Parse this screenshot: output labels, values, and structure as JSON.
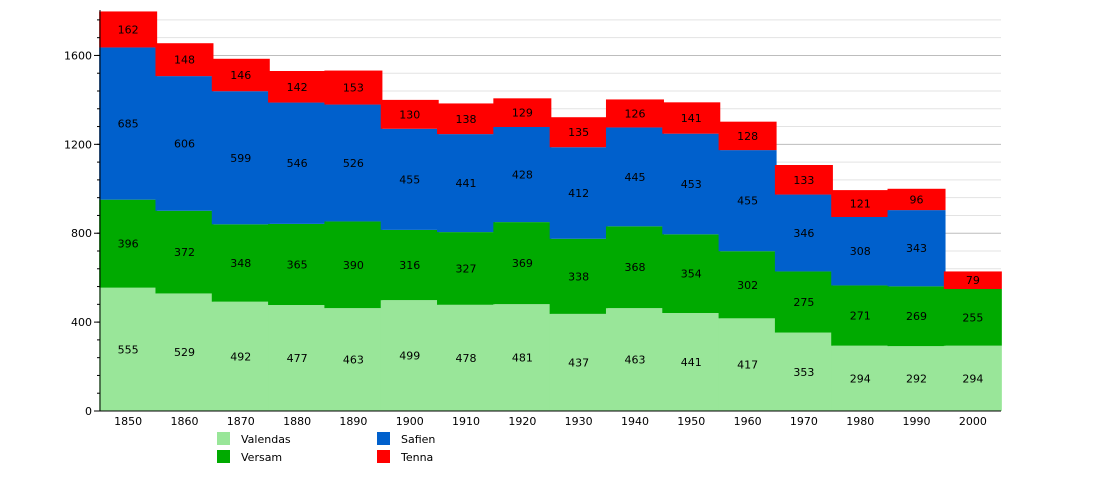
{
  "chart_data": {
    "type": "bar",
    "stacked": true,
    "categories": [
      "1850",
      "1860",
      "1870",
      "1880",
      "1890",
      "1900",
      "1910",
      "1920",
      "1930",
      "1940",
      "1950",
      "1960",
      "1970",
      "1980",
      "1990",
      "2000"
    ],
    "series": [
      {
        "name": "Valendas",
        "color": "#99e699",
        "values": [
          555,
          529,
          492,
          477,
          463,
          499,
          478,
          481,
          437,
          463,
          441,
          417,
          353,
          294,
          292,
          294
        ]
      },
      {
        "name": "Versam",
        "color": "#00aa00",
        "values": [
          396,
          372,
          348,
          365,
          390,
          316,
          327,
          369,
          338,
          368,
          354,
          302,
          275,
          271,
          269,
          255
        ]
      },
      {
        "name": "Safien",
        "color": "#0060cc",
        "values": [
          685,
          606,
          599,
          546,
          526,
          455,
          441,
          428,
          412,
          445,
          453,
          455,
          346,
          308,
          343,
          null
        ]
      },
      {
        "name": "Tenna",
        "color": "#ff0000",
        "values": [
          162,
          148,
          146,
          142,
          153,
          130,
          138,
          129,
          135,
          126,
          141,
          128,
          133,
          121,
          96,
          79
        ]
      }
    ],
    "y_ticks": [
      0,
      400,
      800,
      1200,
      1600
    ],
    "ylim": [
      0,
      1800
    ],
    "grid": true,
    "legend_position": "bottom-left"
  }
}
